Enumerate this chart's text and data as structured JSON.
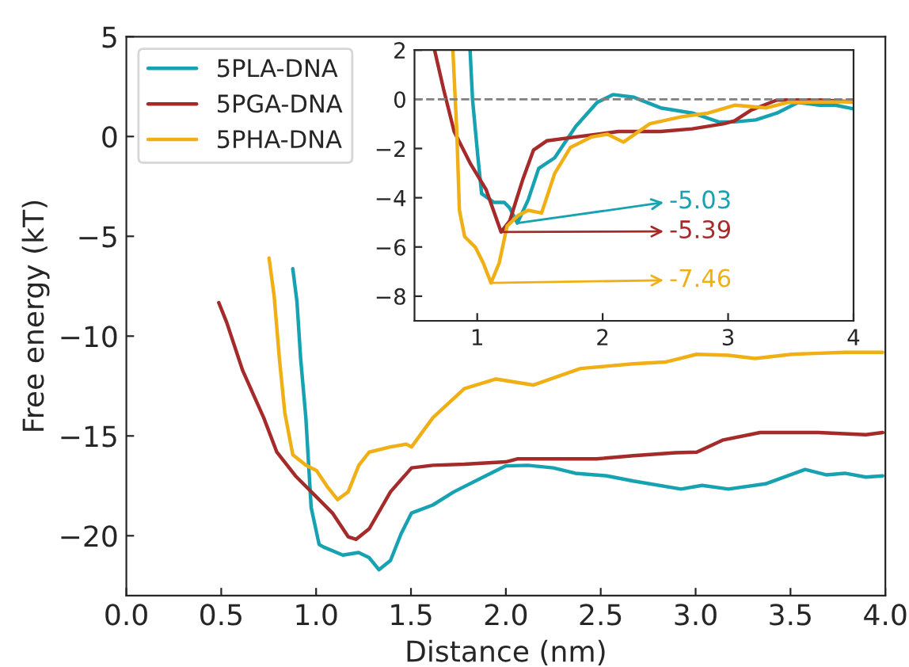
{
  "chart_data": [
    {
      "type": "line",
      "xlabel": "Distance (nm)",
      "ylabel": "Free energy (kT)",
      "xlim": [
        0.0,
        4.0
      ],
      "ylim": [
        -23,
        5
      ],
      "xticks": [
        {
          "value": 0,
          "label": "0.0"
        },
        0.5,
        {
          "value": 1,
          "label": "1.0"
        },
        1.5,
        {
          "value": 2,
          "label": "2.0"
        },
        2.5,
        {
          "value": 3,
          "label": "3.0"
        },
        3.5,
        {
          "value": 4,
          "label": "4.0"
        }
      ],
      "yticks": [
        {
          "value": -20,
          "label": "−20"
        },
        {
          "value": -15,
          "label": "−15"
        },
        {
          "value": -10,
          "label": "−10"
        },
        {
          "value": -5,
          "label": "−5"
        },
        0,
        5
      ],
      "legend": "top left",
      "grid": false,
      "series": [
        {
          "name": "5PLA-DNA",
          "color": "#17a2b2",
          "x": [
            0.877,
            0.899,
            0.919,
            0.946,
            0.974,
            1.016,
            1.04,
            1.141,
            1.224,
            1.28,
            1.331,
            1.392,
            1.448,
            1.503,
            1.615,
            1.726,
            1.893,
            2.0,
            2.115,
            2.25,
            2.366,
            2.533,
            2.672,
            2.923,
            3.034,
            3.173,
            3.368,
            3.577,
            3.688,
            3.786,
            3.897,
            3.986
          ],
          "values": [
            -6.62,
            -8.26,
            -11.18,
            -14.09,
            -18.59,
            -20.44,
            -20.57,
            -20.97,
            -20.84,
            -21.1,
            -21.7,
            -21.24,
            -19.9,
            -18.86,
            -18.46,
            -17.8,
            -17.0,
            -16.5,
            -16.47,
            -16.6,
            -16.87,
            -17.0,
            -17.26,
            -17.66,
            -17.48,
            -17.66,
            -17.4,
            -16.68,
            -16.95,
            -16.87,
            -17.06,
            -17.0
          ]
        },
        {
          "name": "5PGA-DNA",
          "color": "#a52a2a",
          "x": [
            0.487,
            0.529,
            0.612,
            0.724,
            0.793,
            0.891,
            1.002,
            1.086,
            1.169,
            1.211,
            1.28,
            1.392,
            1.503,
            1.615,
            1.78,
            2.0,
            2.06,
            2.478,
            2.672,
            2.895,
            3.006,
            3.146,
            3.34,
            3.647,
            3.897,
            3.986
          ],
          "values": [
            -8.32,
            -9.32,
            -11.7,
            -14.09,
            -15.81,
            -17.0,
            -18.06,
            -18.86,
            -20.05,
            -20.18,
            -19.65,
            -17.8,
            -16.6,
            -16.47,
            -16.42,
            -16.3,
            -16.15,
            -16.15,
            -15.99,
            -15.84,
            -15.81,
            -15.2,
            -14.83,
            -14.83,
            -14.94,
            -14.83
          ]
        },
        {
          "name": "5PHA-DNA",
          "color": "#f0b015",
          "x": [
            0.752,
            0.779,
            0.807,
            0.835,
            0.877,
            0.946,
            1.002,
            1.058,
            1.113,
            1.169,
            1.225,
            1.28,
            1.392,
            1.475,
            1.503,
            1.615,
            1.781,
            1.948,
            2.144,
            2.394,
            2.672,
            2.84,
            3.006,
            3.173,
            3.313,
            3.507,
            3.785,
            3.986
          ],
          "values": [
            -6.09,
            -8.0,
            -11.18,
            -13.83,
            -15.94,
            -16.47,
            -16.73,
            -17.53,
            -18.19,
            -17.8,
            -16.47,
            -15.81,
            -15.55,
            -15.41,
            -15.55,
            -14.09,
            -12.63,
            -12.15,
            -12.45,
            -11.62,
            -11.39,
            -11.3,
            -10.91,
            -10.96,
            -11.12,
            -10.91,
            -10.81,
            -10.81
          ]
        }
      ]
    },
    {
      "type": "line",
      "xlim": [
        0.5,
        4
      ],
      "ylim": [
        -9,
        2
      ],
      "xticks": [
        1,
        2,
        3,
        4
      ],
      "yticks": [
        {
          "value": -8,
          "label": "−8"
        },
        {
          "value": -6,
          "label": "−6"
        },
        {
          "value": -4,
          "label": "−4"
        },
        {
          "value": -2,
          "label": "−2"
        },
        0,
        2
      ],
      "grid": false,
      "ref_lines": [
        {
          "axis": "y",
          "value": 0,
          "color": "#808080",
          "line_style": "dashed"
        }
      ],
      "annotations": [
        {
          "text": "-5.03",
          "x": 1.32,
          "y": -5.03
        },
        {
          "text": "-5.39",
          "x": 1.19,
          "y": -5.39
        },
        {
          "text": "-7.46",
          "x": 1.11,
          "y": -7.46
        }
      ],
      "series": [
        {
          "color": "#17a2b2",
          "x": [
            0.943,
            0.963,
            1.006,
            1.035,
            1.133,
            1.216,
            1.258,
            1.32,
            1.406,
            1.49,
            1.617,
            1.786,
            1.956,
            2.082,
            2.25,
            2.462,
            2.715,
            2.925,
            3.05,
            3.22,
            3.39,
            3.558,
            3.728,
            3.855,
            4.0
          ],
          "values": [
            2.0,
            -0.03,
            -2.38,
            -3.83,
            -4.19,
            -4.19,
            -4.41,
            -5.03,
            -4.09,
            -2.81,
            -2.38,
            -1.1,
            -0.13,
            0.19,
            0.08,
            -0.35,
            -0.56,
            -0.92,
            -0.92,
            -0.84,
            -0.56,
            -0.13,
            -0.24,
            -0.24,
            -0.39
          ]
        },
        {
          "color": "#a52a2a",
          "x": [
            0.66,
            0.732,
            0.816,
            0.943,
            1.07,
            1.19,
            1.259,
            1.365,
            1.449,
            1.554,
            1.786,
            2.124,
            2.462,
            2.715,
            2.968,
            3.05,
            3.18,
            3.39,
            3.728,
            4.0
          ],
          "values": [
            2.0,
            0.4,
            -1.31,
            -2.59,
            -3.66,
            -5.39,
            -4.94,
            -3.23,
            -2.06,
            -1.69,
            -1.53,
            -1.31,
            -1.31,
            -1.2,
            -0.99,
            -0.88,
            -0.45,
            -0.03,
            -0.03,
            -0.1
          ]
        },
        {
          "color": "#f0b015",
          "x": [
            0.806,
            0.837,
            0.858,
            0.9,
            0.985,
            1.048,
            1.11,
            1.175,
            1.238,
            1.323,
            1.406,
            1.513,
            1.617,
            1.744,
            1.913,
            2.039,
            2.166,
            2.377,
            2.63,
            2.842,
            3.052,
            3.305,
            3.475,
            3.686,
            4.0
          ],
          "values": [
            2.0,
            -1.31,
            -4.51,
            -5.58,
            -6.01,
            -6.65,
            -7.46,
            -6.65,
            -5.15,
            -4.73,
            -4.51,
            -4.62,
            -3.02,
            -1.95,
            -1.53,
            -1.42,
            -1.74,
            -0.99,
            -0.71,
            -0.56,
            -0.24,
            -0.35,
            -0.13,
            -0.11,
            -0.1
          ]
        }
      ]
    }
  ]
}
